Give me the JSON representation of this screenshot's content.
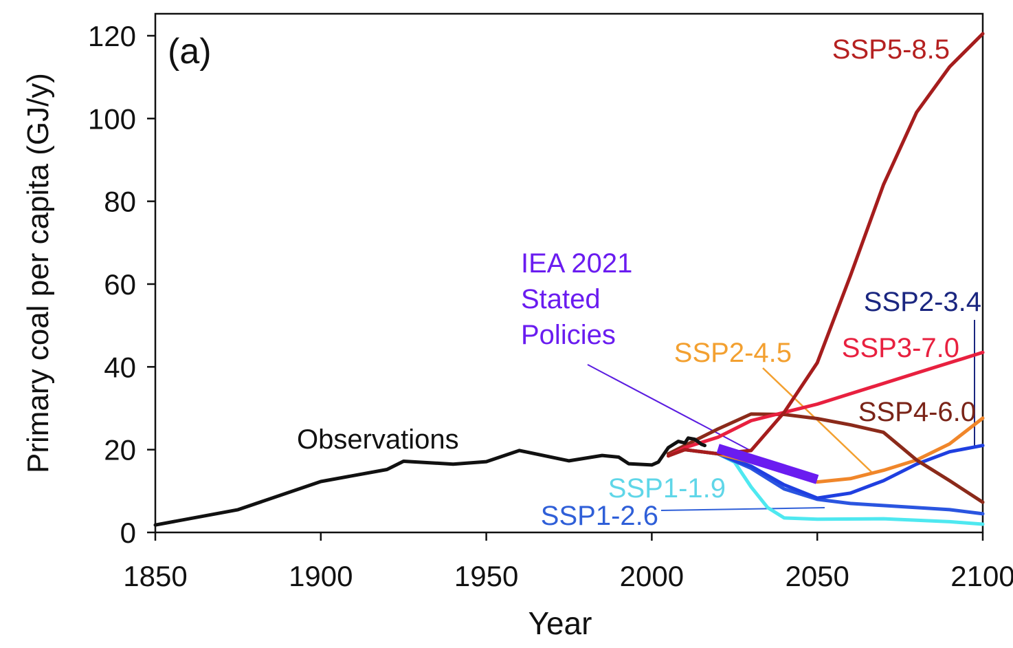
{
  "chart_data": {
    "type": "line",
    "panel_label": "(a)",
    "xlabel": "Year",
    "ylabel": "Primary coal per capita (GJ/y)",
    "xlim": [
      1850,
      2100
    ],
    "ylim": [
      0,
      125
    ],
    "xticks": [
      1850,
      1900,
      1950,
      2000,
      2050,
      2100
    ],
    "yticks": [
      0,
      20,
      40,
      60,
      80,
      100,
      120
    ],
    "grid": false,
    "series": [
      {
        "name": "Observations",
        "label": "Observations",
        "color": "#111111",
        "label_color": "#111111",
        "x": [
          1850,
          1875,
          1900,
          1920,
          1925,
          1940,
          1950,
          1960,
          1975,
          1985,
          1990,
          1993,
          2000,
          2002,
          2005,
          2008,
          2010,
          2011,
          2013,
          2015,
          2016
        ],
        "y": [
          1.8,
          5.5,
          12.3,
          15.2,
          17.2,
          16.5,
          17.1,
          19.8,
          17.3,
          18.6,
          18.2,
          16.6,
          16.3,
          17.0,
          20.5,
          22.0,
          21.6,
          22.8,
          22.5,
          21.3,
          21.0
        ]
      },
      {
        "name": "SSP5-8.5",
        "label": "SSP5-8.5",
        "color": "#a51d1d",
        "label_color": "#b52020",
        "x": [
          2005,
          2010,
          2020,
          2030,
          2040,
          2050,
          2060,
          2070,
          2080,
          2090,
          2100
        ],
        "y": [
          18.5,
          20.0,
          19.0,
          19.8,
          29.0,
          41.0,
          62.0,
          84.0,
          101.5,
          112.5,
          120.5
        ]
      },
      {
        "name": "SSP3-7.0",
        "label": "SSP3-7.0",
        "color": "#e8203f",
        "label_color": "#e8203f",
        "x": [
          2005,
          2010,
          2020,
          2030,
          2040,
          2050,
          2060,
          2070,
          2080,
          2090,
          2100
        ],
        "y": [
          18.5,
          20.5,
          23.0,
          27.0,
          29.0,
          31.0,
          33.5,
          36.0,
          38.5,
          41.0,
          43.5
        ]
      },
      {
        "name": "SSP4-6.0",
        "label": "SSP4-6.0",
        "color": "#8b2a1a",
        "label_color": "#7a2418",
        "x": [
          2005,
          2010,
          2020,
          2030,
          2040,
          2050,
          2060,
          2070,
          2080,
          2090,
          2100
        ],
        "y": [
          19.0,
          21.0,
          25.0,
          28.6,
          28.5,
          27.5,
          26.0,
          24.2,
          17.5,
          12.5,
          7.3
        ]
      },
      {
        "name": "SSP2-4.5",
        "label": "SSP2-4.5",
        "color": "#f0862a",
        "label_color": "#f3a030",
        "x": [
          2005,
          2010,
          2020,
          2030,
          2040,
          2050,
          2060,
          2070,
          2080,
          2090,
          2100
        ],
        "y": [
          19.0,
          20.0,
          19.0,
          17.0,
          15.0,
          12.2,
          13.0,
          15.0,
          17.5,
          21.4,
          27.6
        ]
      },
      {
        "name": "SSP2-3.4",
        "label": "SSP2-3.4",
        "color": "#1f3fe0",
        "label_color": "#1a2680",
        "x": [
          2010,
          2020,
          2030,
          2040,
          2050,
          2060,
          2070,
          2080,
          2090,
          2100
        ],
        "y": [
          20.0,
          19.0,
          16.0,
          11.5,
          8.3,
          9.5,
          12.5,
          16.5,
          19.5,
          21.0
        ]
      },
      {
        "name": "SSP1-2.6",
        "label": "SSP1-2.6",
        "color": "#2a55e0",
        "label_color": "#2f5fd8",
        "x": [
          2010,
          2020,
          2030,
          2040,
          2050,
          2060,
          2070,
          2080,
          2090,
          2100
        ],
        "y": [
          20.0,
          19.0,
          15.5,
          10.5,
          8.0,
          7.0,
          6.5,
          6.0,
          5.5,
          4.5
        ]
      },
      {
        "name": "SSP1-1.9",
        "label": "SSP1-1.9",
        "color": "#4ee8f0",
        "label_color": "#5fd6e8",
        "x": [
          2010,
          2020,
          2025,
          2030,
          2035,
          2040,
          2050,
          2070,
          2090,
          2100
        ],
        "y": [
          20.0,
          19.0,
          17.0,
          11.0,
          6.0,
          3.5,
          3.2,
          3.3,
          2.6,
          2.0
        ]
      },
      {
        "name": "IEA 2021 Stated Policies",
        "label_lines": [
          "IEA 2021",
          "Stated",
          "Policies"
        ],
        "color": "#6a1cf0",
        "label_color": "#6a1cf0",
        "x": [
          2020,
          2050
        ],
        "y": [
          20.3,
          12.8
        ]
      }
    ]
  }
}
